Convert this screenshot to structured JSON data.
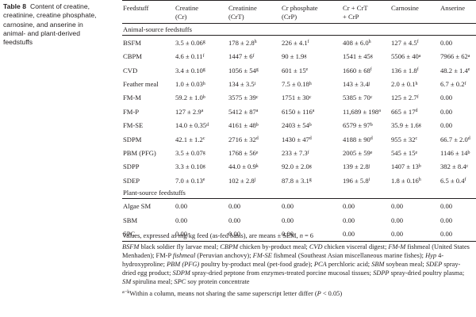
{
  "caption": {
    "label": "Table 8",
    "text": "Content of creatine, creatinine, creatine phosphate, carnosine, and anserine in animal- and plant-derived feedstuffs"
  },
  "headers": [
    {
      "line1": "Feedstuff",
      "line2": ""
    },
    {
      "line1": "Creatine",
      "line2": "(Cr)"
    },
    {
      "line1": "Creatinine",
      "line2": "(CrT)"
    },
    {
      "line1": "Cr phosphate",
      "line2": "(CrP)"
    },
    {
      "line1": "Cr + CrT",
      "line2": "+ CrP"
    },
    {
      "line1": "Carnosine",
      "line2": ""
    },
    {
      "line1": "Anserine",
      "line2": ""
    }
  ],
  "animal_section": "Animal-source feedstuffs",
  "plant_section": "Plant-source feedstuffs",
  "animal_rows": [
    {
      "name": "BSFM",
      "cells": [
        [
          "3.5 ± 0.06",
          "g"
        ],
        [
          "178 ± 2.8",
          "h"
        ],
        [
          "226 ± 4.1",
          "f"
        ],
        [
          "408 ± 6.0",
          "h"
        ],
        [
          "127 ± 4.5",
          "f"
        ],
        [
          "0.00",
          ""
        ]
      ]
    },
    {
      "name": "CBPM",
      "cells": [
        [
          "4.6 ± 0.11",
          "f"
        ],
        [
          "1447 ± 6",
          "f"
        ],
        [
          "90 ± 1.9",
          "g"
        ],
        [
          "1541 ± 45",
          "g"
        ],
        [
          "5506 ± 40",
          "a"
        ],
        [
          "7966 ± 62",
          "a"
        ]
      ]
    },
    {
      "name": "CVD",
      "cells": [
        [
          "3.4 ± 0.10",
          "g"
        ],
        [
          "1056 ± 54",
          "g"
        ],
        [
          "601 ± 15",
          "e"
        ],
        [
          "1660 ± 68",
          "f"
        ],
        [
          "136 ± 1.8",
          "f"
        ],
        [
          "48.2 ± 1.4",
          "e"
        ]
      ]
    },
    {
      "name": "Feather meal",
      "cells": [
        [
          "1.0 ± 0.03",
          "h"
        ],
        [
          "134 ± 3.5",
          "i"
        ],
        [
          "7.5 ± 0.18",
          "h"
        ],
        [
          "143 ± 3.4",
          "j"
        ],
        [
          "2.0 ± 0.1",
          "h"
        ],
        [
          "6.7 ± 0.2",
          "f"
        ]
      ]
    },
    {
      "name": "FM-M",
      "cells": [
        [
          "59.2 ± 1.0",
          "b"
        ],
        [
          "3575 ± 39",
          "c"
        ],
        [
          "1751 ± 30",
          "c"
        ],
        [
          "5385 ± 70",
          "c"
        ],
        [
          "125 ± 2.7",
          "f"
        ],
        [
          "0.00",
          ""
        ]
      ]
    },
    {
      "name": "FM-P",
      "cells": [
        [
          "127 ± 2.9",
          "a"
        ],
        [
          "5412 ± 87",
          "a"
        ],
        [
          "6150 ± 116",
          "a"
        ],
        [
          "11,689 ± 198",
          "a"
        ],
        [
          "665 ± 17",
          "d"
        ],
        [
          "0.00",
          ""
        ]
      ]
    },
    {
      "name": "FM-SE",
      "cells": [
        [
          "14.0 ± 0.35",
          "d"
        ],
        [
          "4161 ± 48",
          "b"
        ],
        [
          "2403 ± 54",
          "b"
        ],
        [
          "6579 ± 97",
          "b"
        ],
        [
          "35.9 ± 1.6",
          "g"
        ],
        [
          "0.00",
          ""
        ]
      ]
    },
    {
      "name": "SDPM",
      "cells": [
        [
          "42.1 ± 1.2",
          "c"
        ],
        [
          "2716 ± 32",
          "d"
        ],
        [
          "1430 ± 47",
          "d"
        ],
        [
          "4188 ± 90",
          "d"
        ],
        [
          "955 ± 32",
          "c"
        ],
        [
          "66.7 ± 2.0",
          "d"
        ]
      ]
    },
    {
      "name": "PBM (PFG)",
      "cells": [
        [
          "3.5 ± 0.07",
          "g"
        ],
        [
          "1768 ± 56",
          "e"
        ],
        [
          "233 ± 7.3",
          "f"
        ],
        [
          "2005 ± 59",
          "e"
        ],
        [
          "545 ± 15",
          "e"
        ],
        [
          "1146 ± 14",
          "b"
        ]
      ]
    },
    {
      "name": "SDPP",
      "cells": [
        [
          "3.3 ± 0.10",
          "g"
        ],
        [
          "44.0 ± 0.9",
          "k"
        ],
        [
          "92.0 ± 2.0",
          "g"
        ],
        [
          "139 ± 2.8",
          "j"
        ],
        [
          "1407 ± 13",
          "b"
        ],
        [
          "382 ± 8.4",
          "c"
        ]
      ]
    },
    {
      "name": "SDEP",
      "cells": [
        [
          "7.0 ± 0.13",
          "e"
        ],
        [
          "102 ± 2.8",
          "j"
        ],
        [
          "87.8 ± 3.1",
          "g"
        ],
        [
          "196 ± 5.8",
          "i"
        ],
        [
          "1.8 ± 0.16",
          "h"
        ],
        [
          "6.5 ± 0.4",
          "f"
        ]
      ]
    }
  ],
  "plant_rows": [
    {
      "name": "Algae SM",
      "cells": [
        [
          "0.00",
          ""
        ],
        [
          "0.00",
          ""
        ],
        [
          "0.00",
          ""
        ],
        [
          "0.00",
          ""
        ],
        [
          "0.00",
          ""
        ],
        [
          "0.00",
          ""
        ]
      ]
    },
    {
      "name": "SBM",
      "cells": [
        [
          "0.00",
          ""
        ],
        [
          "0.00",
          ""
        ],
        [
          "0.00",
          ""
        ],
        [
          "0.00",
          ""
        ],
        [
          "0.00",
          ""
        ],
        [
          "0.00",
          ""
        ]
      ]
    },
    {
      "name": "SPC",
      "cells": [
        [
          "0.00",
          ""
        ],
        [
          "0.00",
          ""
        ],
        [
          "0.00",
          ""
        ],
        [
          "0.00",
          ""
        ],
        [
          "0.00",
          ""
        ],
        [
          "0.00",
          ""
        ]
      ]
    }
  ],
  "footnotes": {
    "values_pre": "Values, expressed as mg/kg feed (as-fed basis), are means ± SEM, ",
    "values_n": "n",
    "values_post": " = 6",
    "abbrev": [
      {
        "abbr": "BSFM",
        "text": " black soldier fly larvae meal; "
      },
      {
        "abbr": "CBPM",
        "text": " chicken by-product meal; "
      },
      {
        "abbr": "CVD",
        "text": " chicken visceral digest; "
      },
      {
        "abbr": "FM-M",
        "text": " fishmeal (United States Menhaden); FM-P "
      },
      {
        "abbr": "fishmeal",
        "text": " (Peruvian anchovy); "
      },
      {
        "abbr": "FM-SE",
        "text": " fishmeal (Southeast Asian miscellaneous marine fishes); "
      },
      {
        "abbr": "Hyp",
        "text": " 4-hydroxyproline; "
      },
      {
        "abbr": "PBM (PFG)",
        "text": " poultry by-product meal (pet-food grade); "
      },
      {
        "abbr": "PCA",
        "text": " perchloric acid; "
      },
      {
        "abbr": "SBM",
        "text": " soybean meal; "
      },
      {
        "abbr": "SDEP",
        "text": " spray-dried egg product; "
      },
      {
        "abbr": "SDPM",
        "text": " spray-dried peptone from enzymes-treated porcine mucosal tissues; "
      },
      {
        "abbr": "SDPP",
        "text": " spray-dried poultry plasma; "
      },
      {
        "abbr": "SM",
        "text": " spirulina meal; "
      },
      {
        "abbr": "SPC",
        "text": " soy protein concentrate"
      }
    ],
    "sig_marker": "a−k",
    "sig_pre": "Within a column, means not sharing the same superscript letter differ (",
    "sig_p": "P",
    "sig_post": " < 0.05)"
  }
}
